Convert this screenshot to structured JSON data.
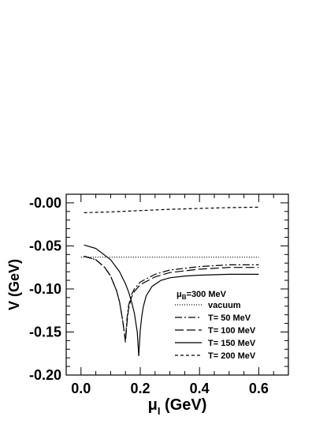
{
  "chart_data": {
    "type": "line",
    "xlabel": {
      "main": "μ",
      "sub": "I",
      "unit": " (GeV)"
    },
    "ylabel": "V (GeV)",
    "xlim": [
      -0.05,
      0.7
    ],
    "ylim": [
      -0.2,
      0.01
    ],
    "x_ticks": [
      0.0,
      0.2,
      0.4,
      0.6
    ],
    "x_tick_labels": [
      "0.0",
      "0.2",
      "0.4",
      "0.6"
    ],
    "y_ticks": [
      -0.2,
      -0.15,
      -0.1,
      -0.05,
      0.0
    ],
    "y_tick_labels": [
      "-0.20",
      "-0.15",
      "-0.10",
      "-0.05",
      "-0.00"
    ],
    "legend": {
      "title_main": "μ",
      "title_sub": "B",
      "title_rest": "=300 MeV",
      "placement": "lower-right"
    },
    "series": [
      {
        "name": "vacuum",
        "style": "dotted",
        "color": "#555555",
        "x": [
          0.0,
          0.6
        ],
        "y": [
          -0.063,
          -0.063
        ]
      },
      {
        "name": "T= 50 MeV",
        "style": "dashdot",
        "color": "#000000",
        "x": [
          0.01,
          0.05,
          0.08,
          0.1,
          0.12,
          0.13,
          0.14,
          0.145,
          0.15,
          0.155,
          0.16,
          0.17,
          0.18,
          0.2,
          0.25,
          0.3,
          0.4,
          0.5,
          0.6
        ],
        "y": [
          -0.062,
          -0.066,
          -0.075,
          -0.085,
          -0.102,
          -0.115,
          -0.135,
          -0.147,
          -0.16,
          -0.135,
          -0.12,
          -0.107,
          -0.1,
          -0.092,
          -0.083,
          -0.078,
          -0.074,
          -0.072,
          -0.072
        ]
      },
      {
        "name": "T= 100 MeV",
        "style": "longdash",
        "color": "#000000",
        "x": [
          0.01,
          0.05,
          0.08,
          0.1,
          0.12,
          0.13,
          0.14,
          0.145,
          0.15,
          0.155,
          0.16,
          0.17,
          0.18,
          0.2,
          0.25,
          0.3,
          0.4,
          0.5,
          0.6
        ],
        "y": [
          -0.062,
          -0.066,
          -0.075,
          -0.085,
          -0.102,
          -0.115,
          -0.135,
          -0.148,
          -0.162,
          -0.14,
          -0.124,
          -0.11,
          -0.103,
          -0.095,
          -0.086,
          -0.081,
          -0.077,
          -0.075,
          -0.075
        ]
      },
      {
        "name": "T= 150 MeV",
        "style": "solid",
        "color": "#000000",
        "x": [
          0.01,
          0.05,
          0.1,
          0.13,
          0.15,
          0.16,
          0.17,
          0.18,
          0.19,
          0.195,
          0.2,
          0.205,
          0.21,
          0.22,
          0.24,
          0.27,
          0.3,
          0.35,
          0.4,
          0.5,
          0.6
        ],
        "y": [
          -0.049,
          -0.053,
          -0.066,
          -0.08,
          -0.094,
          -0.103,
          -0.114,
          -0.128,
          -0.15,
          -0.178,
          -0.148,
          -0.132,
          -0.121,
          -0.108,
          -0.097,
          -0.09,
          -0.087,
          -0.085,
          -0.084,
          -0.083,
          -0.083
        ]
      },
      {
        "name": "T= 200 MeV",
        "style": "shortdash",
        "color": "#000000",
        "x": [
          0.01,
          0.1,
          0.2,
          0.3,
          0.4,
          0.5,
          0.6
        ],
        "y": [
          -0.0115,
          -0.0105,
          -0.009,
          -0.0075,
          -0.0065,
          -0.0055,
          -0.005
        ]
      }
    ]
  }
}
